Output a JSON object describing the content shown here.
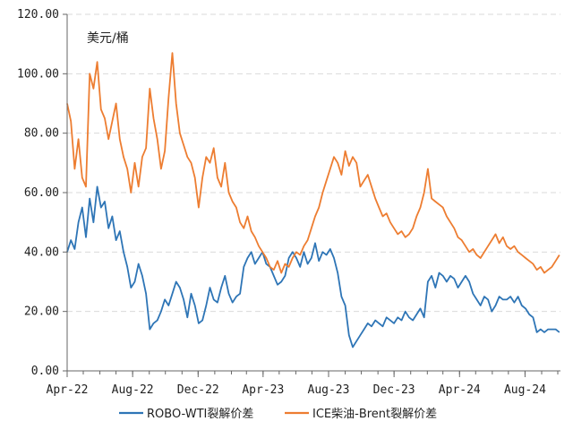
{
  "chart_data": {
    "type": "line",
    "unit": "美元/桶",
    "ylim": [
      0,
      120
    ],
    "yticks": [
      "0.00",
      "20.00",
      "40.00",
      "60.00",
      "80.00",
      "100.00",
      "120.00"
    ],
    "xlim": [
      "2022-04-01",
      "2024-10-06"
    ],
    "xticks": [
      {
        "label": "Apr-22",
        "date": "2022-04-01"
      },
      {
        "label": "Aug-22",
        "date": "2022-08-01"
      },
      {
        "label": "Dec-22",
        "date": "2022-12-01"
      },
      {
        "label": "Apr-23",
        "date": "2023-04-01"
      },
      {
        "label": "Aug-23",
        "date": "2023-08-01"
      },
      {
        "label": "Dec-23",
        "date": "2023-12-01"
      },
      {
        "label": "Apr-24",
        "date": "2024-04-01"
      },
      {
        "label": "Aug-24",
        "date": "2024-08-01"
      }
    ],
    "grid": "horizontal-dashed",
    "legend": "bottom",
    "series": [
      {
        "name": "ROBO-WTI裂解价差",
        "color": "#2e75b6",
        "points": [
          [
            "2022-04-01",
            40
          ],
          [
            "2022-04-08",
            44
          ],
          [
            "2022-04-15",
            41
          ],
          [
            "2022-04-22",
            50
          ],
          [
            "2022-04-29",
            55
          ],
          [
            "2022-05-06",
            45
          ],
          [
            "2022-05-13",
            58
          ],
          [
            "2022-05-20",
            50
          ],
          [
            "2022-05-27",
            62
          ],
          [
            "2022-06-03",
            55
          ],
          [
            "2022-06-10",
            57
          ],
          [
            "2022-06-17",
            48
          ],
          [
            "2022-06-24",
            52
          ],
          [
            "2022-07-01",
            44
          ],
          [
            "2022-07-08",
            47
          ],
          [
            "2022-07-15",
            40
          ],
          [
            "2022-07-22",
            35
          ],
          [
            "2022-07-29",
            28
          ],
          [
            "2022-08-05",
            30
          ],
          [
            "2022-08-12",
            36
          ],
          [
            "2022-08-19",
            32
          ],
          [
            "2022-08-26",
            26
          ],
          [
            "2022-09-02",
            14
          ],
          [
            "2022-09-09",
            16
          ],
          [
            "2022-09-16",
            17
          ],
          [
            "2022-09-23",
            20
          ],
          [
            "2022-09-30",
            24
          ],
          [
            "2022-10-07",
            22
          ],
          [
            "2022-10-14",
            26
          ],
          [
            "2022-10-21",
            30
          ],
          [
            "2022-10-28",
            28
          ],
          [
            "2022-11-04",
            24
          ],
          [
            "2022-11-11",
            18
          ],
          [
            "2022-11-18",
            26
          ],
          [
            "2022-11-25",
            22
          ],
          [
            "2022-12-02",
            16
          ],
          [
            "2022-12-09",
            17
          ],
          [
            "2022-12-16",
            22
          ],
          [
            "2022-12-23",
            28
          ],
          [
            "2022-12-30",
            24
          ],
          [
            "2023-01-06",
            23
          ],
          [
            "2023-01-13",
            28
          ],
          [
            "2023-01-20",
            32
          ],
          [
            "2023-01-27",
            26
          ],
          [
            "2023-02-03",
            23
          ],
          [
            "2023-02-10",
            25
          ],
          [
            "2023-02-17",
            26
          ],
          [
            "2023-02-24",
            35
          ],
          [
            "2023-03-03",
            38
          ],
          [
            "2023-03-10",
            40
          ],
          [
            "2023-03-17",
            36
          ],
          [
            "2023-03-24",
            38
          ],
          [
            "2023-03-31",
            40
          ],
          [
            "2023-04-07",
            36
          ],
          [
            "2023-04-14",
            35
          ],
          [
            "2023-04-21",
            32
          ],
          [
            "2023-04-28",
            29
          ],
          [
            "2023-05-05",
            30
          ],
          [
            "2023-05-12",
            32
          ],
          [
            "2023-05-19",
            38
          ],
          [
            "2023-05-26",
            40
          ],
          [
            "2023-06-02",
            38
          ],
          [
            "2023-06-09",
            35
          ],
          [
            "2023-06-16",
            40
          ],
          [
            "2023-06-23",
            36
          ],
          [
            "2023-06-30",
            38
          ],
          [
            "2023-07-07",
            43
          ],
          [
            "2023-07-14",
            37
          ],
          [
            "2023-07-21",
            40
          ],
          [
            "2023-07-28",
            39
          ],
          [
            "2023-08-04",
            41
          ],
          [
            "2023-08-11",
            38
          ],
          [
            "2023-08-18",
            33
          ],
          [
            "2023-08-25",
            25
          ],
          [
            "2023-09-01",
            22
          ],
          [
            "2023-09-08",
            12
          ],
          [
            "2023-09-15",
            8
          ],
          [
            "2023-09-22",
            10
          ],
          [
            "2023-09-29",
            12
          ],
          [
            "2023-10-06",
            14
          ],
          [
            "2023-10-13",
            16
          ],
          [
            "2023-10-20",
            15
          ],
          [
            "2023-10-27",
            17
          ],
          [
            "2023-11-03",
            16
          ],
          [
            "2023-11-10",
            15
          ],
          [
            "2023-11-17",
            18
          ],
          [
            "2023-11-24",
            17
          ],
          [
            "2023-12-01",
            16
          ],
          [
            "2023-12-08",
            18
          ],
          [
            "2023-12-15",
            17
          ],
          [
            "2023-12-22",
            20
          ],
          [
            "2023-12-29",
            18
          ],
          [
            "2024-01-05",
            17
          ],
          [
            "2024-01-12",
            19
          ],
          [
            "2024-01-19",
            21
          ],
          [
            "2024-01-26",
            18
          ],
          [
            "2024-02-02",
            30
          ],
          [
            "2024-02-09",
            32
          ],
          [
            "2024-02-16",
            28
          ],
          [
            "2024-02-23",
            33
          ],
          [
            "2024-03-01",
            32
          ],
          [
            "2024-03-08",
            30
          ],
          [
            "2024-03-15",
            32
          ],
          [
            "2024-03-22",
            31
          ],
          [
            "2024-03-29",
            28
          ],
          [
            "2024-04-05",
            30
          ],
          [
            "2024-04-12",
            32
          ],
          [
            "2024-04-19",
            30
          ],
          [
            "2024-04-26",
            26
          ],
          [
            "2024-05-03",
            24
          ],
          [
            "2024-05-10",
            22
          ],
          [
            "2024-05-17",
            25
          ],
          [
            "2024-05-24",
            24
          ],
          [
            "2024-05-31",
            20
          ],
          [
            "2024-06-07",
            22
          ],
          [
            "2024-06-14",
            25
          ],
          [
            "2024-06-21",
            24
          ],
          [
            "2024-06-28",
            24
          ],
          [
            "2024-07-05",
            25
          ],
          [
            "2024-07-12",
            23
          ],
          [
            "2024-07-19",
            25
          ],
          [
            "2024-07-26",
            22
          ],
          [
            "2024-08-02",
            21
          ],
          [
            "2024-08-09",
            19
          ],
          [
            "2024-08-16",
            18
          ],
          [
            "2024-08-23",
            13
          ],
          [
            "2024-08-30",
            14
          ],
          [
            "2024-09-06",
            13
          ],
          [
            "2024-09-13",
            14
          ],
          [
            "2024-09-20",
            14
          ],
          [
            "2024-09-27",
            14
          ],
          [
            "2024-10-04",
            13
          ]
        ]
      },
      {
        "name": "ICE柴油-Brent裂解价差",
        "color": "#ed7d31",
        "points": [
          [
            "2022-04-01",
            90
          ],
          [
            "2022-04-08",
            84
          ],
          [
            "2022-04-15",
            68
          ],
          [
            "2022-04-22",
            78
          ],
          [
            "2022-04-29",
            65
          ],
          [
            "2022-05-06",
            62
          ],
          [
            "2022-05-13",
            100
          ],
          [
            "2022-05-20",
            95
          ],
          [
            "2022-05-27",
            104
          ],
          [
            "2022-06-03",
            88
          ],
          [
            "2022-06-10",
            85
          ],
          [
            "2022-06-17",
            78
          ],
          [
            "2022-06-24",
            84
          ],
          [
            "2022-07-01",
            90
          ],
          [
            "2022-07-08",
            78
          ],
          [
            "2022-07-15",
            72
          ],
          [
            "2022-07-22",
            68
          ],
          [
            "2022-07-29",
            60
          ],
          [
            "2022-08-05",
            70
          ],
          [
            "2022-08-12",
            62
          ],
          [
            "2022-08-19",
            72
          ],
          [
            "2022-08-26",
            75
          ],
          [
            "2022-09-02",
            95
          ],
          [
            "2022-09-09",
            85
          ],
          [
            "2022-09-16",
            78
          ],
          [
            "2022-09-23",
            68
          ],
          [
            "2022-09-30",
            74
          ],
          [
            "2022-10-07",
            92
          ],
          [
            "2022-10-14",
            107
          ],
          [
            "2022-10-21",
            90
          ],
          [
            "2022-10-28",
            80
          ],
          [
            "2022-11-04",
            76
          ],
          [
            "2022-11-11",
            72
          ],
          [
            "2022-11-18",
            70
          ],
          [
            "2022-11-25",
            65
          ],
          [
            "2022-12-02",
            55
          ],
          [
            "2022-12-09",
            65
          ],
          [
            "2022-12-16",
            72
          ],
          [
            "2022-12-23",
            70
          ],
          [
            "2022-12-30",
            75
          ],
          [
            "2023-01-06",
            65
          ],
          [
            "2023-01-13",
            62
          ],
          [
            "2023-01-20",
            70
          ],
          [
            "2023-01-27",
            60
          ],
          [
            "2023-02-03",
            57
          ],
          [
            "2023-02-10",
            55
          ],
          [
            "2023-02-17",
            50
          ],
          [
            "2023-02-24",
            48
          ],
          [
            "2023-03-03",
            52
          ],
          [
            "2023-03-10",
            47
          ],
          [
            "2023-03-17",
            45
          ],
          [
            "2023-03-24",
            42
          ],
          [
            "2023-03-31",
            40
          ],
          [
            "2023-04-07",
            38
          ],
          [
            "2023-04-14",
            35
          ],
          [
            "2023-04-21",
            34
          ],
          [
            "2023-04-28",
            37
          ],
          [
            "2023-05-05",
            33
          ],
          [
            "2023-05-12",
            36
          ],
          [
            "2023-05-19",
            35
          ],
          [
            "2023-05-26",
            38
          ],
          [
            "2023-06-02",
            40
          ],
          [
            "2023-06-09",
            39
          ],
          [
            "2023-06-16",
            42
          ],
          [
            "2023-06-23",
            44
          ],
          [
            "2023-06-30",
            48
          ],
          [
            "2023-07-07",
            52
          ],
          [
            "2023-07-14",
            55
          ],
          [
            "2023-07-21",
            60
          ],
          [
            "2023-07-28",
            64
          ],
          [
            "2023-08-04",
            68
          ],
          [
            "2023-08-11",
            72
          ],
          [
            "2023-08-18",
            70
          ],
          [
            "2023-08-25",
            66
          ],
          [
            "2023-09-01",
            74
          ],
          [
            "2023-09-08",
            69
          ],
          [
            "2023-09-15",
            72
          ],
          [
            "2023-09-22",
            70
          ],
          [
            "2023-09-29",
            62
          ],
          [
            "2023-10-06",
            64
          ],
          [
            "2023-10-13",
            66
          ],
          [
            "2023-10-20",
            62
          ],
          [
            "2023-10-27",
            58
          ],
          [
            "2023-11-03",
            55
          ],
          [
            "2023-11-10",
            52
          ],
          [
            "2023-11-17",
            53
          ],
          [
            "2023-11-24",
            50
          ],
          [
            "2023-12-01",
            48
          ],
          [
            "2023-12-08",
            46
          ],
          [
            "2023-12-15",
            47
          ],
          [
            "2023-12-22",
            45
          ],
          [
            "2023-12-29",
            46
          ],
          [
            "2024-01-05",
            48
          ],
          [
            "2024-01-12",
            52
          ],
          [
            "2024-01-19",
            55
          ],
          [
            "2024-01-26",
            60
          ],
          [
            "2024-02-02",
            68
          ],
          [
            "2024-02-09",
            58
          ],
          [
            "2024-02-16",
            57
          ],
          [
            "2024-02-23",
            56
          ],
          [
            "2024-03-01",
            55
          ],
          [
            "2024-03-08",
            52
          ],
          [
            "2024-03-15",
            50
          ],
          [
            "2024-03-22",
            48
          ],
          [
            "2024-03-29",
            45
          ],
          [
            "2024-04-05",
            44
          ],
          [
            "2024-04-12",
            42
          ],
          [
            "2024-04-19",
            40
          ],
          [
            "2024-04-26",
            41
          ],
          [
            "2024-05-03",
            39
          ],
          [
            "2024-05-10",
            38
          ],
          [
            "2024-05-17",
            40
          ],
          [
            "2024-05-24",
            42
          ],
          [
            "2024-05-31",
            44
          ],
          [
            "2024-06-07",
            46
          ],
          [
            "2024-06-14",
            43
          ],
          [
            "2024-06-21",
            45
          ],
          [
            "2024-06-28",
            42
          ],
          [
            "2024-07-05",
            41
          ],
          [
            "2024-07-12",
            42
          ],
          [
            "2024-07-19",
            40
          ],
          [
            "2024-07-26",
            39
          ],
          [
            "2024-08-02",
            38
          ],
          [
            "2024-08-09",
            37
          ],
          [
            "2024-08-16",
            36
          ],
          [
            "2024-08-23",
            34
          ],
          [
            "2024-08-30",
            35
          ],
          [
            "2024-09-06",
            33
          ],
          [
            "2024-09-13",
            34
          ],
          [
            "2024-09-20",
            35
          ],
          [
            "2024-09-27",
            37
          ],
          [
            "2024-10-04",
            39
          ]
        ]
      }
    ]
  }
}
